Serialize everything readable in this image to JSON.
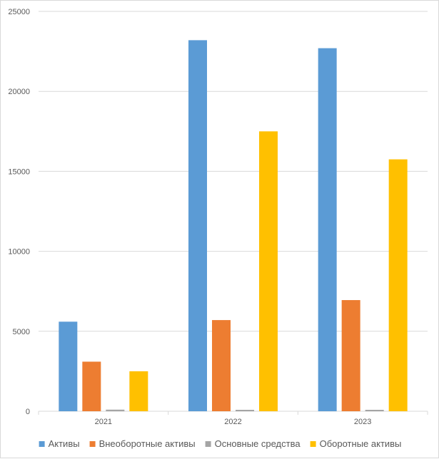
{
  "chart_data": {
    "type": "bar",
    "title": "",
    "xlabel": "",
    "ylabel": "",
    "categories": [
      "2021",
      "2022",
      "2023"
    ],
    "ylim": [
      0,
      25000
    ],
    "yticks": [
      "0",
      "5000",
      "10000",
      "15000",
      "20000",
      "25000"
    ],
    "grid": true,
    "legend_position": "bottom",
    "series": [
      {
        "name": "Активы",
        "color": "#5b9bd5",
        "values": [
          5600,
          23200,
          22700
        ]
      },
      {
        "name": "Внеоборотные активы",
        "color": "#ed7d31",
        "values": [
          3100,
          5700,
          6950
        ]
      },
      {
        "name": "Основные средства",
        "color": "#a5a5a5",
        "values": [
          100,
          60,
          60
        ]
      },
      {
        "name": "Оборотные активы",
        "color": "#ffc000",
        "values": [
          2500,
          17500,
          15750
        ]
      }
    ]
  }
}
